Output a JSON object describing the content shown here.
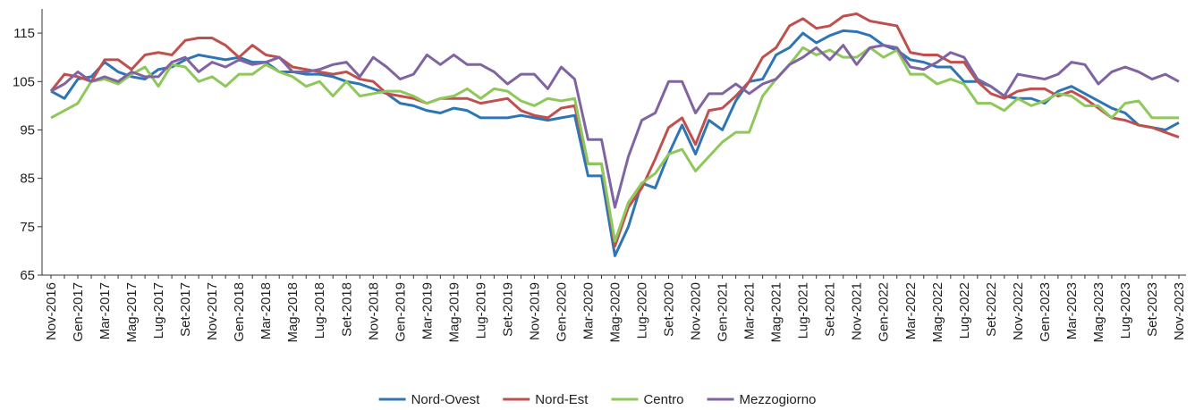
{
  "chart_data": {
    "type": "line",
    "categories": [
      "Nov-2016",
      null,
      "Gen-2017",
      null,
      "Mar-2017",
      null,
      "Mag-2017",
      null,
      "Lug-2017",
      null,
      "Set-2017",
      null,
      "Nov-2017",
      null,
      "Gen-2018",
      null,
      "Mar-2018",
      null,
      "Mag-2018",
      null,
      "Lug-2018",
      null,
      "Set-2018",
      null,
      "Nov-2018",
      null,
      "Gen-2019",
      null,
      "Mar-2019",
      null,
      "Mag-2019",
      null,
      "Lug-2019",
      null,
      "Set-2019",
      null,
      "Nov-2019",
      null,
      "Gen-2020",
      null,
      "Mar-2020",
      null,
      "Mag-2020",
      null,
      "Lug-2020",
      null,
      "Set-2020",
      null,
      "Nov-2020",
      null,
      "Gen-2021",
      null,
      "Mar-2021",
      null,
      "Mag-2021",
      null,
      "Lug-2021",
      null,
      "Set-2021",
      null,
      "Nov-2021",
      null,
      "Gen-2022",
      null,
      "Mar-2022",
      null,
      "Mag-2022",
      null,
      "Lug-2022",
      null,
      "Set-2022",
      null,
      "Nov-2022",
      null,
      "Gen-2023",
      null,
      "Mar-2023",
      null,
      "Mag-2023",
      null,
      "Lug-2023",
      null,
      "Set-2023",
      null,
      "Nov-2023"
    ],
    "series": [
      {
        "name": "Nord-Ovest",
        "color": "#2e75b6",
        "values": [
          103,
          101.5,
          105.5,
          106,
          109,
          107,
          106,
          105.5,
          107.5,
          108,
          109.5,
          110.5,
          110,
          109.5,
          110,
          109,
          109,
          107,
          107,
          106.5,
          106.5,
          106,
          105,
          104.5,
          103.5,
          102.5,
          100.5,
          100,
          99,
          98.5,
          99.5,
          99,
          97.5,
          97.5,
          97.5,
          98,
          97.5,
          97,
          97.5,
          98,
          85.5,
          85.5,
          69,
          75,
          84,
          83,
          90,
          96,
          90,
          97,
          95,
          101,
          105,
          105.5,
          110.5,
          112,
          115,
          113,
          114.5,
          115.5,
          115.3,
          114.5,
          112.5,
          111.5,
          109.5,
          109,
          108,
          108,
          105,
          105,
          104,
          102,
          101.5,
          101.5,
          100.5,
          103,
          104,
          102.5,
          101,
          99.5,
          98.5,
          96,
          95.5,
          95,
          96.5
        ]
      },
      {
        "name": "Nord-Est",
        "color": "#c0504d",
        "values": [
          103,
          106.5,
          106,
          105,
          109.5,
          109.5,
          107.5,
          110.5,
          111,
          110.5,
          113.5,
          114,
          114,
          112.5,
          110,
          112.5,
          110.5,
          110,
          108,
          107.5,
          107,
          106.5,
          107,
          105.5,
          105,
          102.5,
          102,
          101.5,
          100.5,
          101.5,
          101.5,
          101.5,
          100.5,
          101,
          101.5,
          99,
          98,
          97.5,
          99.5,
          100,
          88,
          88,
          71,
          79,
          83,
          89,
          95.5,
          97.5,
          92,
          99,
          99.5,
          102,
          105,
          110,
          112,
          116.5,
          118,
          116,
          116.5,
          118.5,
          119,
          117.5,
          117,
          116.5,
          111,
          110.5,
          110.5,
          109,
          109,
          105,
          102.5,
          101.5,
          103,
          103.5,
          103.5,
          102,
          103,
          101.5,
          99.5,
          97.5,
          97,
          96,
          95.5,
          94.5,
          93.5
        ]
      },
      {
        "name": "Centro",
        "color": "#8fc85a",
        "values": [
          97.5,
          99,
          100.5,
          105,
          105.5,
          104.5,
          106.5,
          108,
          104,
          108.5,
          108,
          105,
          106,
          104,
          106.5,
          106.5,
          108.5,
          107,
          106,
          104,
          105,
          102,
          105,
          102,
          102.5,
          103,
          103,
          102,
          100.5,
          101.5,
          102,
          103.5,
          101.5,
          103.5,
          103,
          101,
          100,
          101.5,
          101,
          101.5,
          88,
          88,
          72,
          80,
          84,
          86,
          90,
          91,
          86.5,
          89.5,
          92.5,
          94.5,
          94.5,
          102,
          105.5,
          108.5,
          112,
          110.5,
          111.5,
          110,
          110,
          112,
          110,
          111.5,
          106.5,
          106.5,
          104.5,
          105.5,
          104.5,
          100.5,
          100.5,
          99,
          101.5,
          100,
          101,
          102.5,
          102,
          100,
          100,
          97.5,
          100.5,
          101,
          97.5,
          97.5,
          97.5
        ]
      },
      {
        "name": "Mezzogiorno",
        "color": "#8064a2",
        "values": [
          103,
          104.5,
          107,
          105,
          106,
          105,
          107,
          106,
          106,
          109,
          110,
          107,
          109,
          108,
          109.5,
          108.5,
          109,
          110,
          107,
          107,
          107.5,
          108.5,
          109,
          106,
          110,
          108,
          105.5,
          106.5,
          110.5,
          108.5,
          110.5,
          108.5,
          108.5,
          107,
          104.5,
          106.5,
          106.5,
          103.5,
          108,
          105.5,
          93,
          93,
          79,
          89.5,
          97,
          98.5,
          105,
          105,
          98.5,
          102.5,
          102.5,
          104.5,
          102.5,
          104.5,
          105.5,
          108.5,
          110,
          112,
          109.5,
          112.5,
          108.5,
          112,
          112.5,
          112,
          108,
          107.5,
          109,
          111,
          110,
          105.5,
          104,
          102,
          106.5,
          106,
          105.5,
          106.5,
          109,
          108.5,
          104.5,
          107,
          108,
          107,
          105.5,
          106.5,
          105
        ]
      }
    ],
    "ylim": [
      65,
      120
    ],
    "yticks": [
      65,
      75,
      85,
      95,
      105,
      115
    ],
    "grid": false,
    "legend": "bottom"
  }
}
